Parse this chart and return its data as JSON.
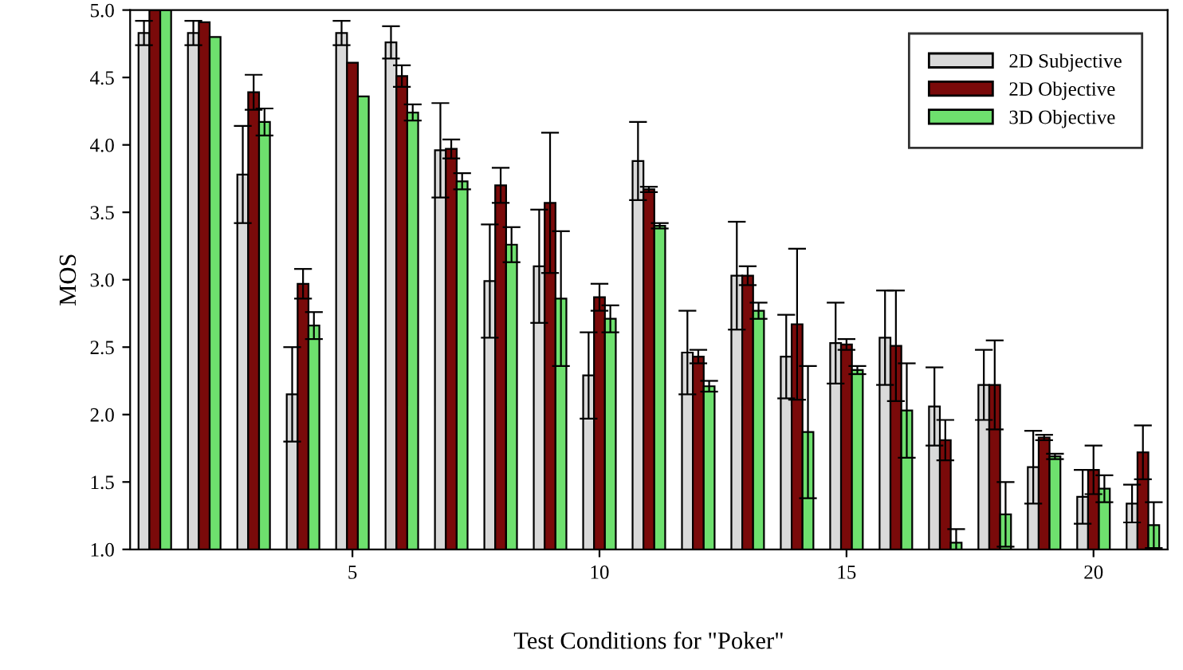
{
  "chart_data": {
    "type": "bar",
    "xlabel": "Test Conditions for \"Poker\"",
    "ylabel": "MOS",
    "categories": [
      null,
      null,
      null,
      null,
      "5",
      null,
      null,
      null,
      null,
      "10",
      null,
      null,
      null,
      null,
      "15",
      null,
      null,
      null,
      null,
      "20",
      null
    ],
    "series": [
      {
        "name": "2D Subjective",
        "color": "#d9d9d9",
        "values": [
          4.83,
          4.83,
          3.78,
          2.15,
          4.83,
          4.76,
          3.96,
          2.99,
          3.1,
          2.29,
          3.88,
          2.46,
          3.03,
          2.43,
          2.53,
          2.57,
          2.06,
          2.22,
          1.61,
          1.39,
          1.34
        ],
        "errors": [
          0.09,
          0.09,
          0.36,
          0.35,
          0.09,
          0.12,
          0.35,
          0.42,
          0.42,
          0.32,
          0.29,
          0.31,
          0.4,
          0.31,
          0.3,
          0.35,
          0.29,
          0.26,
          0.27,
          0.2,
          0.14
        ]
      },
      {
        "name": "2D Objective",
        "color": "#7a0a0a",
        "values": [
          5.0,
          4.91,
          4.39,
          2.97,
          4.61,
          4.51,
          3.97,
          3.7,
          3.57,
          2.87,
          3.67,
          2.43,
          3.03,
          2.67,
          2.52,
          2.51,
          1.81,
          2.22,
          1.83,
          1.59,
          1.72
        ],
        "errors": [
          null,
          null,
          0.13,
          0.11,
          null,
          0.08,
          0.07,
          0.13,
          0.52,
          0.1,
          0.02,
          0.05,
          0.07,
          0.56,
          0.04,
          0.41,
          0.15,
          0.33,
          0.02,
          0.18,
          0.2
        ]
      },
      {
        "name": "3D Objective",
        "color": "#6ee06e",
        "values": [
          5.0,
          4.8,
          4.17,
          2.66,
          4.36,
          4.24,
          3.73,
          3.26,
          2.86,
          2.71,
          3.4,
          2.21,
          2.77,
          1.87,
          2.33,
          2.03,
          1.05,
          1.26,
          1.69,
          1.45,
          1.18
        ],
        "errors": [
          null,
          null,
          0.1,
          0.1,
          null,
          0.06,
          0.06,
          0.13,
          0.5,
          0.1,
          0.02,
          0.04,
          0.06,
          0.49,
          0.03,
          0.35,
          0.1,
          0.24,
          0.02,
          0.1,
          0.17
        ]
      }
    ],
    "ylim": [
      1.0,
      5.0
    ],
    "yticks": [
      {
        "value": 1.0,
        "label": "1.0"
      },
      {
        "value": 1.5,
        "label": "1.5"
      },
      {
        "value": 2.0,
        "label": "2.0"
      },
      {
        "value": 2.5,
        "label": "2.5"
      },
      {
        "value": 3.0,
        "label": "3.0"
      },
      {
        "value": 3.5,
        "label": "3.5"
      },
      {
        "value": 4.0,
        "label": "4.0"
      },
      {
        "value": 4.5,
        "label": "4.5"
      },
      {
        "value": 5.0,
        "label": "5.0"
      }
    ],
    "legend": "top right",
    "grid": false
  }
}
